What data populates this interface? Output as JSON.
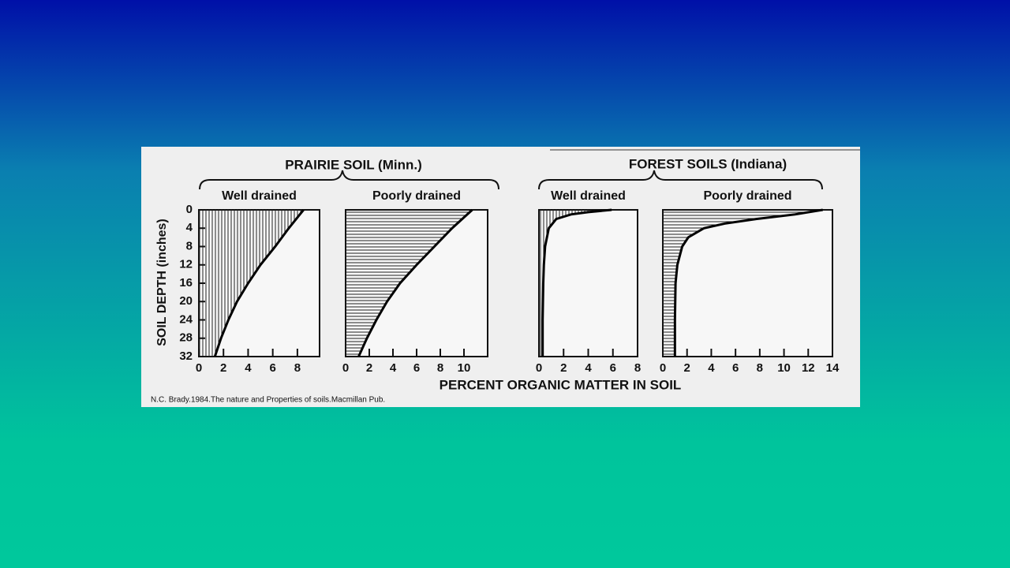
{
  "figure": {
    "groups": [
      "PRAIRIE SOIL (Minn.)",
      "FOREST SOILS (Indiana)"
    ],
    "ylabel": "SOIL DEPTH (inches)",
    "xlabel": "PERCENT ORGANIC MATTER IN SOIL",
    "caption": "N.C. Brady.1984.The nature and Properties of soils.Macmillan Pub."
  },
  "chart_data": [
    {
      "type": "line",
      "title": "Well drained",
      "hatch": "vertical",
      "y": [
        0,
        4,
        8,
        12,
        16,
        20,
        24,
        28,
        32
      ],
      "values": [
        8.5,
        7.3,
        6.2,
        5.0,
        4.0,
        3.1,
        2.4,
        1.8,
        1.3
      ],
      "xlim": [
        0,
        9.8
      ],
      "xticks": [
        0,
        2,
        4,
        6,
        8
      ],
      "ylim": [
        0,
        32
      ],
      "yticks": [
        0,
        4,
        8,
        12,
        16,
        20,
        24,
        28,
        32
      ],
      "y_inverted": true
    },
    {
      "type": "line",
      "title": "Poorly drained",
      "hatch": "horizontal",
      "y": [
        0,
        4,
        8,
        12,
        16,
        20,
        24,
        28,
        32
      ],
      "values": [
        10.7,
        9.0,
        7.5,
        6.0,
        4.6,
        3.5,
        2.6,
        1.8,
        1.1
      ],
      "xlim": [
        0,
        12
      ],
      "xticks": [
        0,
        2,
        4,
        6,
        8,
        10
      ],
      "ylim": [
        0,
        32
      ],
      "y_inverted": true
    },
    {
      "type": "line",
      "title": "Well drained",
      "hatch": "vertical",
      "y": [
        0,
        0.5,
        1,
        2,
        4,
        8,
        12,
        16,
        24,
        32
      ],
      "values": [
        5.9,
        4.0,
        2.6,
        1.4,
        0.8,
        0.5,
        0.4,
        0.35,
        0.3,
        0.3
      ],
      "xlim": [
        0,
        8
      ],
      "xticks": [
        0,
        2,
        4,
        6,
        8
      ],
      "ylim": [
        0,
        32
      ],
      "y_inverted": true
    },
    {
      "type": "line",
      "title": "Poorly drained",
      "hatch": "horizontal",
      "y": [
        0,
        1,
        2,
        3,
        4,
        6,
        8,
        12,
        16,
        24,
        32
      ],
      "values": [
        13.2,
        10.9,
        7.7,
        5.1,
        3.4,
        2.1,
        1.6,
        1.2,
        1.05,
        1.0,
        1.0
      ],
      "xlim": [
        0,
        14
      ],
      "xticks": [
        0,
        2,
        4,
        6,
        8,
        10,
        12,
        14
      ],
      "ylim": [
        0,
        32
      ],
      "y_inverted": true
    }
  ]
}
